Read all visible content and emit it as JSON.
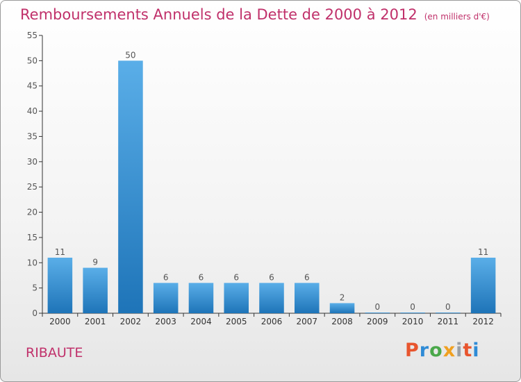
{
  "header": {
    "title": "Remboursements Annuels de la Dette de 2000 à 2012",
    "unit": "(en milliers d'€)"
  },
  "footer": {
    "commune": "RIBAUTE",
    "logo": [
      "P",
      "r",
      "o",
      "x",
      "i",
      "t",
      "i"
    ]
  },
  "colors": {
    "title": "#c0306a",
    "bar_top": "#5aaee8",
    "bar_bottom": "#1e74b8",
    "axis": "#333333",
    "label": "#555555"
  },
  "chart_data": {
    "type": "bar",
    "categories": [
      "2000",
      "2001",
      "2002",
      "2003",
      "2004",
      "2005",
      "2006",
      "2007",
      "2008",
      "2009",
      "2010",
      "2011",
      "2012"
    ],
    "values": [
      11,
      9,
      50,
      6,
      6,
      6,
      6,
      6,
      2,
      0,
      0,
      0,
      11
    ],
    "ylim": [
      0,
      55
    ],
    "yticks": [
      0,
      5,
      10,
      15,
      20,
      25,
      30,
      35,
      40,
      45,
      50,
      55
    ],
    "grid": false,
    "data_labels": true
  }
}
